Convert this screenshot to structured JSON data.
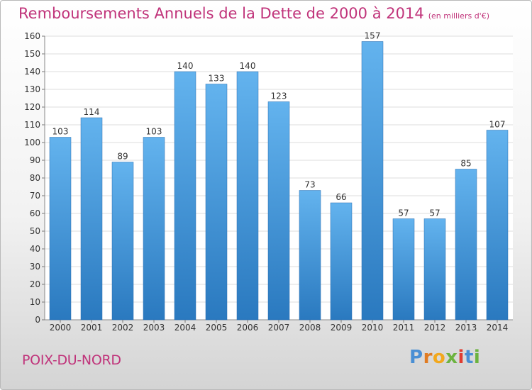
{
  "header": {
    "title": "Remboursements Annuels de la Dette de 2000 à 2014",
    "unit": "(en milliers d'€)"
  },
  "footer": {
    "place": "POIX-DU-NORD",
    "brand_letters": [
      "P",
      "r",
      "o",
      "x",
      "i",
      "t",
      "i"
    ],
    "brand_colors": [
      "#4a8fd4",
      "#e07b22",
      "#f2a81d",
      "#6cb33f",
      "#e03c31",
      "#4a8fd4",
      "#6cb33f"
    ]
  },
  "chart_data": {
    "type": "bar",
    "categories": [
      "2000",
      "2001",
      "2002",
      "2003",
      "2004",
      "2005",
      "2006",
      "2007",
      "2008",
      "2009",
      "2010",
      "2011",
      "2012",
      "2013",
      "2014"
    ],
    "values": [
      103,
      114,
      89,
      103,
      140,
      133,
      140,
      123,
      73,
      66,
      157,
      57,
      57,
      85,
      107
    ],
    "ylim": [
      0,
      160
    ],
    "yticks": [
      0,
      10,
      20,
      30,
      40,
      50,
      60,
      70,
      80,
      90,
      100,
      110,
      120,
      130,
      140,
      150,
      160
    ],
    "grid": true,
    "data_labels": true,
    "colors": {
      "bar_top": "#63b3ee",
      "bar_bottom": "#2a79bf",
      "grid": "#dddddd",
      "label": "#333333"
    }
  }
}
